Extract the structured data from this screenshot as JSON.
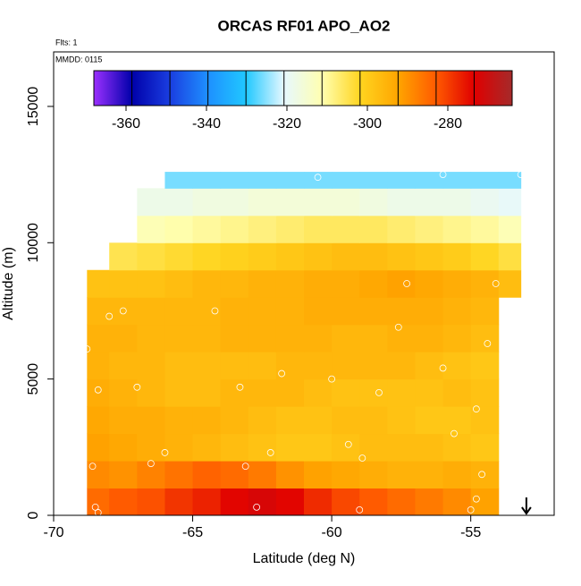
{
  "chart_data": {
    "type": "heatmap",
    "title": "ORCAS RF01 APO_AO2",
    "flights_label": "Flts: 1",
    "date_label": "MMDD: 0115",
    "xlabel": "Latitude (deg N)",
    "ylabel": "Altitude (m)",
    "xlim": [
      -70,
      -52
    ],
    "ylim": [
      0,
      17000
    ],
    "xticks": [
      -70,
      -65,
      -60,
      -55
    ],
    "yticks": [
      0,
      5000,
      10000,
      15000
    ],
    "x_edges": [
      -68.8,
      -68,
      -67,
      -66,
      -65,
      -64,
      -63,
      -62,
      -61,
      -60,
      -59,
      -58,
      -57,
      -56,
      -55,
      -54,
      -53.2
    ],
    "y_edges": [
      0,
      1000,
      2000,
      3000,
      4000,
      5000,
      6000,
      7000,
      8000,
      9000,
      10000,
      11000,
      12000,
      12600
    ],
    "z": [
      [
        -285,
        -283,
        -282,
        -279,
        -277,
        -274,
        -272,
        -274,
        -278,
        -281,
        -283,
        -285,
        -287,
        -289,
        -292,
        null
      ],
      [
        -289,
        -290,
        -288,
        -286,
        -284,
        -285,
        -287,
        -290,
        -292,
        -293,
        -294,
        -295,
        -295,
        -294,
        -295,
        null
      ],
      [
        -292,
        -293,
        -294,
        -295,
        -296,
        -297,
        -298,
        -299,
        -299,
        -298,
        -297,
        -297,
        -297,
        -298,
        -299,
        null
      ],
      [
        -293,
        -294,
        -294,
        -295,
        -295,
        -296,
        -297,
        -298,
        -298,
        -297,
        -297,
        -298,
        -299,
        -299,
        -298,
        null
      ],
      [
        -294,
        -295,
        -296,
        -297,
        -297,
        -296,
        -296,
        -296,
        -297,
        -298,
        -298,
        -298,
        -298,
        -297,
        -298,
        null
      ],
      [
        -295,
        -296,
        -296,
        -297,
        -297,
        -297,
        -297,
        -296,
        -296,
        -296,
        -296,
        -296,
        -297,
        -298,
        -299,
        null
      ],
      [
        -295,
        -295,
        -296,
        -296,
        -296,
        -295,
        -295,
        -295,
        -295,
        -296,
        -296,
        -295,
        -295,
        -296,
        -297,
        null
      ],
      [
        -296,
        -296,
        -296,
        -296,
        -296,
        -295,
        -295,
        -295,
        -294,
        -294,
        -294,
        -294,
        -294,
        -295,
        -296,
        null
      ],
      [
        -298,
        -298,
        -298,
        -297,
        -296,
        -296,
        -295,
        -295,
        -294,
        -294,
        -293,
        -292,
        -293,
        -294,
        -295,
        -297
      ],
      [
        null,
        -305,
        -304,
        -303,
        -302,
        -301,
        -300,
        -299,
        -298,
        -297,
        -297,
        -298,
        -299,
        -300,
        -302,
        -304
      ],
      [
        null,
        null,
        -312,
        -311,
        -310,
        -309,
        -308,
        -307,
        -306,
        -306,
        -306,
        -307,
        -308,
        -309,
        -310,
        -312
      ],
      [
        null,
        null,
        -318,
        -318,
        -317,
        -317,
        -316,
        -316,
        -316,
        -316,
        -317,
        -318,
        -318,
        -318,
        -319,
        -320
      ],
      [
        null,
        null,
        null,
        -326,
        -326,
        -326,
        -326,
        -326,
        -326,
        -326,
        -326,
        -326,
        -326,
        -326,
        -326,
        -326
      ]
    ],
    "points": {
      "x": [
        -68.6,
        -68.4,
        -68.8,
        -68,
        -67.5,
        -67,
        -66.5,
        -66,
        -66.2,
        -64.2,
        -63.3,
        -63.1,
        -62.2,
        -61.8,
        -60.5,
        -60,
        -59.4,
        -58.9,
        -58.3,
        -57.6,
        -57.3,
        -56,
        -55.6,
        -56,
        -54.8,
        -54.4,
        -54.1,
        -54.6,
        -54.8,
        -53.2,
        -68.5,
        -68.4,
        -62.7,
        -59,
        -55
      ],
      "y": [
        1800,
        4600,
        6100,
        7300,
        7500,
        4700,
        1900,
        2300,
        12200,
        7500,
        4700,
        1800,
        2300,
        5200,
        12400,
        5000,
        2600,
        2100,
        4500,
        6900,
        8500,
        5400,
        3000,
        12500,
        3900,
        6300,
        8500,
        1500,
        600,
        12500,
        300,
        100,
        300,
        200,
        200
      ]
    },
    "colorbar": {
      "range": [
        -368,
        -264
      ],
      "ticks": [
        -360,
        -340,
        -320,
        -300,
        -280
      ],
      "colors": [
        "#9b30ff",
        "#0000aa",
        "#1a3ee0",
        "#1e90ff",
        "#20c8ff",
        "#e6f8ff",
        "#ffffb0",
        "#ffd520",
        "#ffa500",
        "#ff5a00",
        "#e00000",
        "#a52a2a"
      ]
    }
  }
}
